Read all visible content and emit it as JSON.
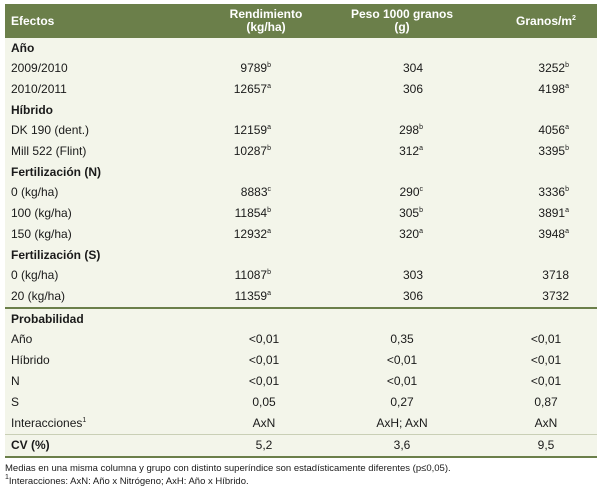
{
  "header": {
    "col0": "Efectos",
    "col1_line1": "Rendimiento",
    "col1_line2": "(kg/ha)",
    "col2_line1": "Peso 1000 granos",
    "col2_line2": "(g)",
    "col3": "Granos/m",
    "col3_sup": "2",
    "bg_color": "#6b7f4a",
    "body_color": "#f3f5ea"
  },
  "sections": {
    "ano": {
      "label": "Año",
      "rows": [
        {
          "name": "2009/2010",
          "v1": "9789",
          "s1": "b",
          "v2": "304",
          "s2": "",
          "v3": "3252",
          "s3": "b"
        },
        {
          "name": "2010/2011",
          "v1": "12657",
          "s1": "a",
          "v2": "306",
          "s2": "",
          "v3": "4198",
          "s3": "a"
        }
      ]
    },
    "hibrido": {
      "label": "Híbrido",
      "rows": [
        {
          "name": "DK 190 (dent.)",
          "v1": "12159",
          "s1": "a",
          "v2": "298",
          "s2": "b",
          "v3": "4056",
          "s3": "a"
        },
        {
          "name": "Mill 522 (Flint)",
          "v1": "10287",
          "s1": "b",
          "v2": "312",
          "s2": "a",
          "v3": "3395",
          "s3": "b"
        }
      ]
    },
    "fertn": {
      "label": "Fertilización (N)",
      "rows": [
        {
          "name": "0 (kg/ha)",
          "v1": "8883",
          "s1": "c",
          "v2": "290",
          "s2": "c",
          "v3": "3336",
          "s3": "b"
        },
        {
          "name": "100 (kg/ha)",
          "v1": "11854",
          "s1": "b",
          "v2": "305",
          "s2": "b",
          "v3": "3891",
          "s3": "a"
        },
        {
          "name": "150 (kg/ha)",
          "v1": "12932",
          "s1": "a",
          "v2": "320",
          "s2": "a",
          "v3": "3948",
          "s3": "a"
        }
      ]
    },
    "ferts": {
      "label": "Fertilización (S)",
      "rows": [
        {
          "name": "0 (kg/ha)",
          "v1": "11087",
          "s1": "b",
          "v2": "303",
          "s2": "",
          "v3": "3718",
          "s3": ""
        },
        {
          "name": "20 (kg/ha)",
          "v1": "11359",
          "s1": "a",
          "v2": "306",
          "s2": "",
          "v3": "3732",
          "s3": ""
        }
      ]
    }
  },
  "probabilidad": {
    "label": "Probabilidad",
    "rows": [
      {
        "name": "Año",
        "sup": "",
        "v1": "<0,01",
        "v2": "0,35",
        "v3": "<0,01"
      },
      {
        "name": "Híbrido",
        "sup": "",
        "v1": "<0,01",
        "v2": "<0,01",
        "v3": "<0,01"
      },
      {
        "name": "N",
        "sup": "",
        "v1": "<0,01",
        "v2": "<0,01",
        "v3": "<0,01"
      },
      {
        "name": "S",
        "sup": "",
        "v1": "0,05",
        "v2": "0,27",
        "v3": "0,87"
      },
      {
        "name": "Interacciones",
        "sup": "1",
        "v1": "AxN",
        "v2": "AxH; AxN",
        "v3": "AxN"
      }
    ]
  },
  "cv": {
    "label": "CV (%)",
    "v1": "5,2",
    "v2": "3,6",
    "v3": "9,5"
  },
  "notes": {
    "line1": "Medias en una misma columna y grupo con distinto superíndice son estadísticamente diferentes (p≤0,05).",
    "line2_sup": "1",
    "line2": "Interacciones: AxN: Año x Nitrógeno; AxH: Año x Híbrido."
  }
}
